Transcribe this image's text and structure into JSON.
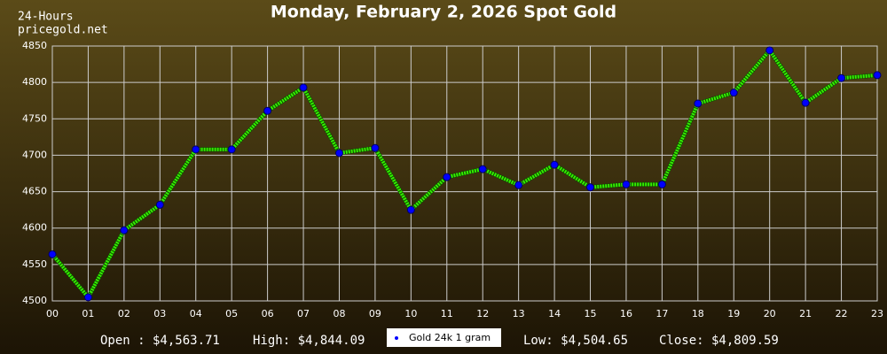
{
  "chart_data": {
    "type": "line",
    "title": "Monday, February 2, 2026 Spot Gold",
    "corner_text": [
      "24-Hours",
      "pricegold.net"
    ],
    "categories": [
      "00",
      "01",
      "02",
      "03",
      "04",
      "05",
      "06",
      "07",
      "08",
      "09",
      "10",
      "11",
      "12",
      "13",
      "14",
      "15",
      "16",
      "17",
      "18",
      "19",
      "20",
      "21",
      "22",
      "23"
    ],
    "series": [
      {
        "name": "Gold 24k 1 gram",
        "color": "#33ee00",
        "marker_color": "#0000ff",
        "values": [
          4564,
          4505,
          4597,
          4632,
          4708,
          4708,
          4761,
          4793,
          4703,
          4710,
          4625,
          4670,
          4681,
          4659,
          4687,
          4656,
          4660,
          4660,
          4771,
          4786,
          4844,
          4772,
          4806,
          4810
        ]
      }
    ],
    "ylim": [
      4500,
      4850
    ],
    "yticks": [
      4500,
      4550,
      4600,
      4650,
      4700,
      4750,
      4800,
      4850
    ],
    "grid": true,
    "stats": {
      "open": "Open : $4,563.71",
      "high": "High: $4,844.09",
      "low": "Low: $4,504.65",
      "close": "Close: $4,809.59"
    }
  }
}
